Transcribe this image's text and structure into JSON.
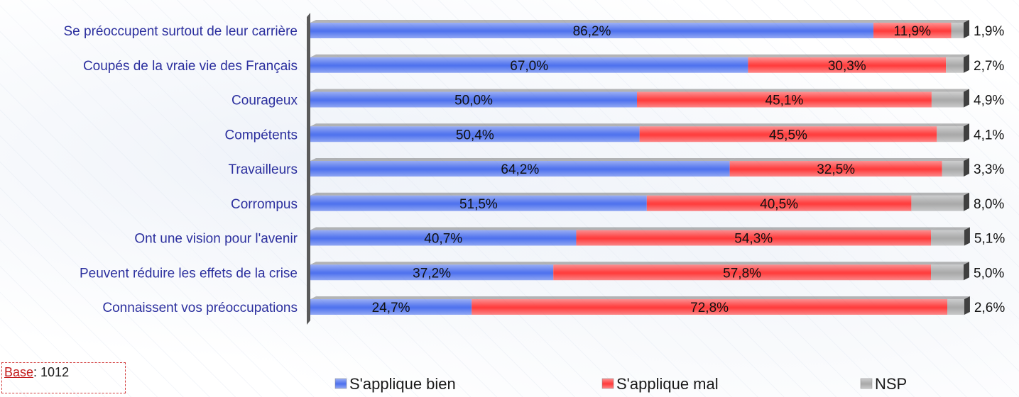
{
  "chart_data": {
    "type": "bar",
    "orientation": "horizontal",
    "stacked": true,
    "xlim": [
      0,
      100
    ],
    "categories": [
      "Se préoccupent surtout de leur carrière",
      "Coupés de la vraie vie des Français",
      "Courageux",
      "Compétents",
      "Travailleurs",
      "Corrompus",
      "Ont une vision pour l'avenir",
      "Peuvent réduire les effets de la crise",
      "Connaissent vos préoccupations"
    ],
    "series": [
      {
        "name": "S'applique bien",
        "color": "#4f72ee",
        "values": [
          86.2,
          67.0,
          50.0,
          50.4,
          64.2,
          51.5,
          40.7,
          37.2,
          24.7
        ],
        "labels": [
          "86,2%",
          "67,0%",
          "50,0%",
          "50,4%",
          "64,2%",
          "51,5%",
          "40,7%",
          "37,2%",
          "24,7%"
        ]
      },
      {
        "name": "S'applique mal",
        "color": "#ff3c3c",
        "values": [
          11.9,
          30.3,
          45.1,
          45.5,
          32.5,
          40.5,
          54.3,
          57.8,
          72.8
        ],
        "labels": [
          "11,9%",
          "30,3%",
          "45,1%",
          "45,5%",
          "32,5%",
          "40,5%",
          "54,3%",
          "57,8%",
          "72,8%"
        ]
      },
      {
        "name": "NSP",
        "color": "#a9a9a9",
        "values": [
          1.9,
          2.7,
          4.9,
          4.1,
          3.3,
          8.0,
          5.1,
          5.0,
          2.6
        ],
        "labels": [
          "1,9%",
          "2,7%",
          "4,9%",
          "4,1%",
          "3,3%",
          "8,0%",
          "5,1%",
          "5,0%",
          "2,6%"
        ]
      }
    ],
    "legend_position": "bottom"
  },
  "base": {
    "label": "Base",
    "value": ": 1012"
  }
}
